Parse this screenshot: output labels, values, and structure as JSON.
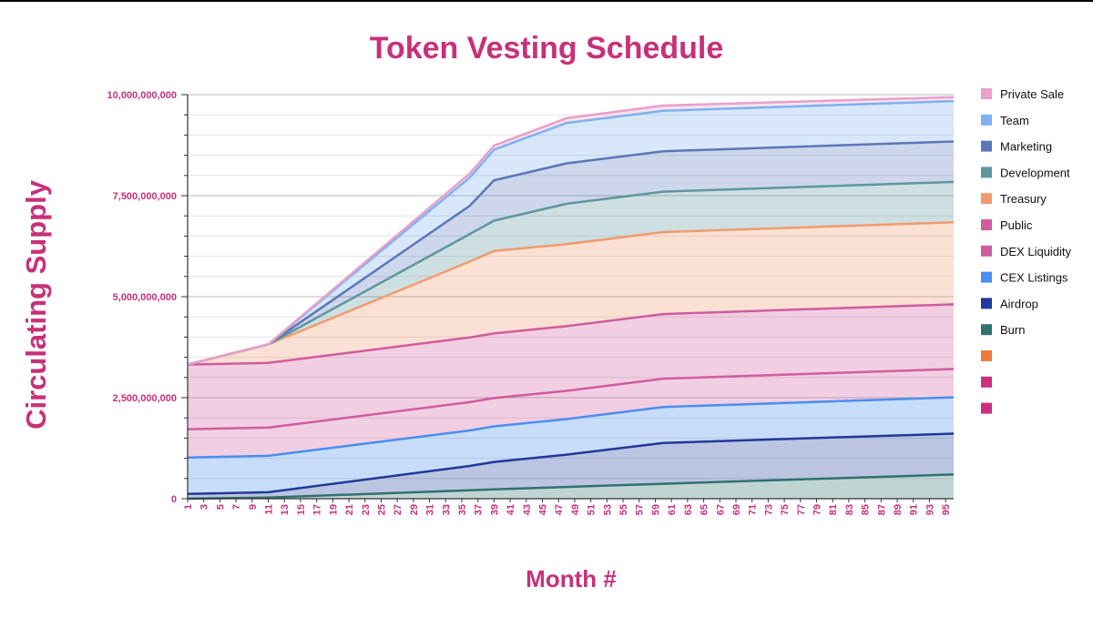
{
  "chart_data": {
    "type": "area",
    "stacked": true,
    "title": "Token Vesting Schedule",
    "xlabel": "Month #",
    "ylabel": "Circulating Supply",
    "ylim": [
      0,
      10000000000
    ],
    "yticks": [
      0,
      2500000000,
      5000000000,
      7500000000,
      10000000000
    ],
    "ytick_labels": [
      "0",
      "2,500,000,000",
      "5,000,000,000",
      "7,500,000,000",
      "10,000,000,000"
    ],
    "xlim": [
      1,
      96
    ],
    "xticks": [
      1,
      3,
      5,
      7,
      9,
      11,
      13,
      15,
      17,
      19,
      21,
      23,
      25,
      27,
      29,
      31,
      33,
      35,
      37,
      39,
      41,
      43,
      45,
      47,
      49,
      51,
      53,
      55,
      57,
      59,
      61,
      63,
      65,
      67,
      69,
      71,
      73,
      75,
      77,
      79,
      81,
      83,
      85,
      87,
      89,
      91,
      93,
      95
    ],
    "grid": true,
    "legend_position": "right",
    "x": [
      1,
      11,
      36,
      39,
      48,
      60,
      96
    ],
    "series": [
      {
        "name": "Burn",
        "color": "#2f7270",
        "values": [
          0,
          30000000,
          210000000,
          230000000,
          290000000,
          370000000,
          600000000
        ]
      },
      {
        "name": "Airdrop",
        "color": "#1e3a9a",
        "values": [
          120000000,
          130000000,
          600000000,
          680000000,
          800000000,
          1010000000,
          1010000000
        ]
      },
      {
        "name": "CEX Listings",
        "color": "#4a8ff0",
        "values": [
          900000000,
          900000000,
          880000000,
          880000000,
          880000000,
          890000000,
          900000000
        ]
      },
      {
        "name": "DEX Liquidity",
        "color": "#d05ca0",
        "values": [
          700000000,
          700000000,
          700000000,
          700000000,
          700000000,
          700000000,
          700000000
        ]
      },
      {
        "name": "Public",
        "color": "#d05ca0",
        "values": [
          1600000000,
          1600000000,
          1600000000,
          1600000000,
          1600000000,
          1600000000,
          1600000000
        ]
      },
      {
        "name": "Treasury",
        "color": "#f29a6e",
        "values": [
          0,
          460000000,
          1880000000,
          2040000000,
          2030000000,
          2030000000,
          2030000000
        ]
      },
      {
        "name": "Development",
        "color": "#5e96a0",
        "values": [
          0,
          0,
          680000000,
          750000000,
          1000000000,
          1000000000,
          1000000000
        ]
      },
      {
        "name": "Marketing",
        "color": "#5a78b8",
        "values": [
          0,
          0,
          700000000,
          1000000000,
          1000000000,
          1000000000,
          1000000000
        ]
      },
      {
        "name": "Team",
        "color": "#7fb1f0",
        "values": [
          0,
          0,
          700000000,
          760000000,
          1000000000,
          1000000000,
          1000000000
        ]
      },
      {
        "name": "Private Sale",
        "color": "#e8a0c8",
        "values": [
          0,
          0,
          100000000,
          100000000,
          120000000,
          130000000,
          100000000
        ]
      }
    ],
    "legend": [
      {
        "label": "Private Sale",
        "color": "#e8a0c8"
      },
      {
        "label": "Team",
        "color": "#7fb1f0"
      },
      {
        "label": "Marketing",
        "color": "#5a78b8"
      },
      {
        "label": "Development",
        "color": "#5e96a0"
      },
      {
        "label": "Treasury",
        "color": "#f29a6e"
      },
      {
        "label": "Public",
        "color": "#d05ca0"
      },
      {
        "label": "DEX Liquidity",
        "color": "#d05ca0"
      },
      {
        "label": "CEX Listings",
        "color": "#4a8ff0"
      },
      {
        "label": "Airdrop",
        "color": "#1e3a9a"
      },
      {
        "label": "Burn",
        "color": "#2f7270"
      },
      {
        "label": "",
        "color": "#f07a3c"
      },
      {
        "label": "",
        "color": "#cc2e80"
      },
      {
        "label": "",
        "color": "#cc2e80"
      }
    ]
  }
}
